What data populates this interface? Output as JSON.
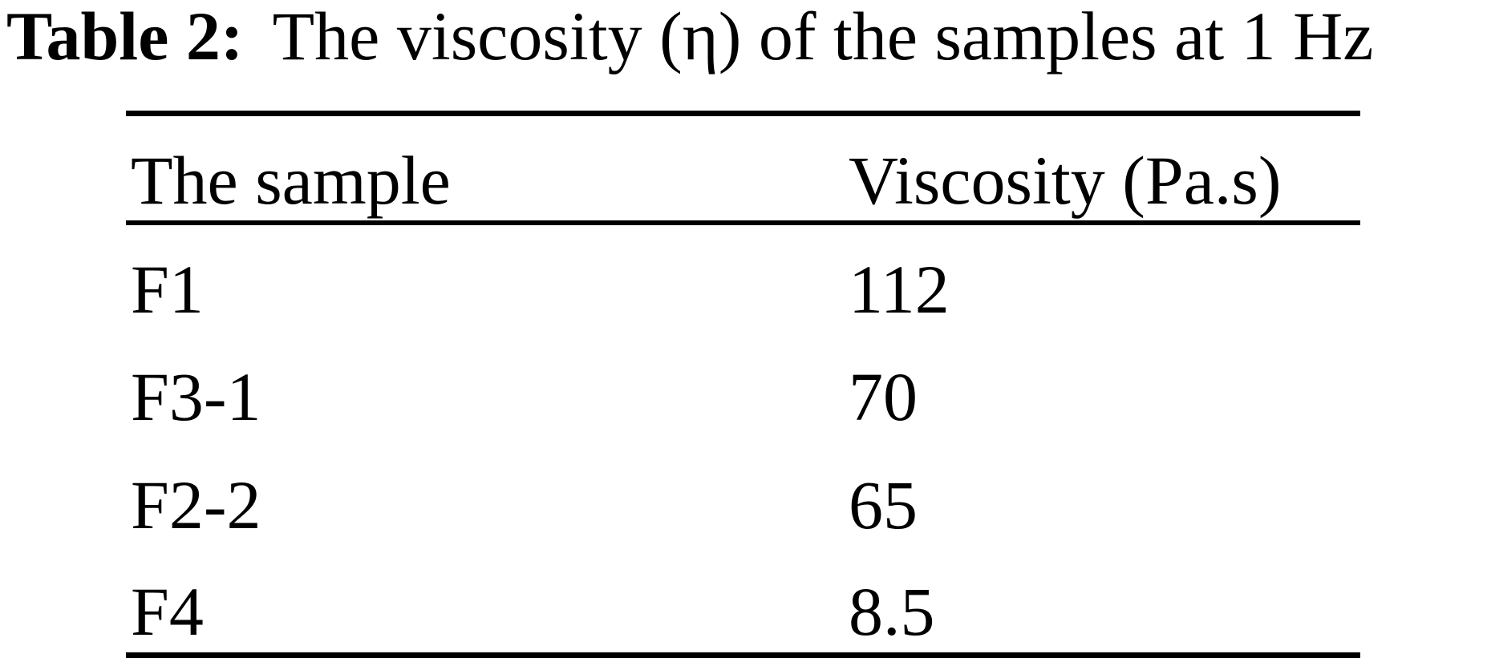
{
  "caption": {
    "label": "Table 2:",
    "text": "The viscosity (η) of the samples at 1 Hz"
  },
  "table": {
    "columns": [
      "The sample",
      "Viscosity (Pa.s)"
    ],
    "rows": [
      {
        "sample": "F1",
        "viscosity": "112"
      },
      {
        "sample": "F3-1",
        "viscosity": "70"
      },
      {
        "sample": "F2-2",
        "viscosity": "65"
      },
      {
        "sample": "F4",
        "viscosity": "8.5"
      }
    ]
  },
  "chart_data": {
    "type": "table",
    "title": "Table 2: The viscosity (η) of the samples at 1 Hz",
    "columns": [
      "The sample",
      "Viscosity (Pa.s)"
    ],
    "rows": [
      [
        "F1",
        112
      ],
      [
        "F3-1",
        70
      ],
      [
        "F2-2",
        65
      ],
      [
        "F4",
        8.5
      ]
    ]
  },
  "colors": {
    "background": "#ffffff",
    "text": "#000000",
    "rule": "#000000"
  }
}
